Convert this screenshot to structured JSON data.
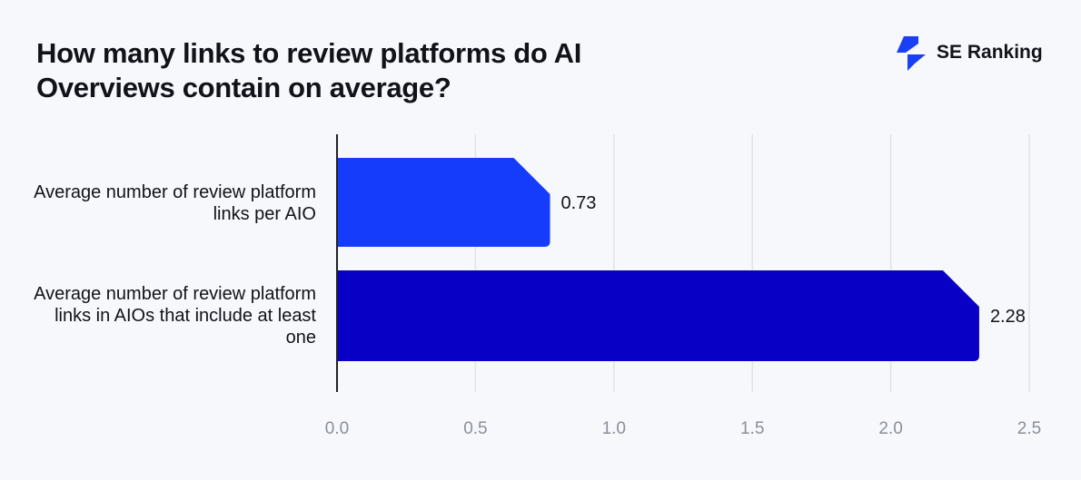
{
  "title": "How many links to review platforms do AI Overviews contain on average?",
  "logo": {
    "text": "SE Ranking",
    "color": "#1a40f5"
  },
  "chart_data": {
    "type": "bar",
    "orientation": "horizontal",
    "title": "How many links to review platforms do AI Overviews contain on average?",
    "categories": [
      "Average number of review platform links per AIO",
      "Average number of review platform links in AIOs that include at least one"
    ],
    "values": [
      0.73,
      2.28
    ],
    "data_labels": [
      "0.73",
      "2.28"
    ],
    "colors": [
      "#163cfb",
      "#0800c4"
    ],
    "xlim": [
      0,
      2.5
    ],
    "x_ticks": [
      "0.0",
      "0.5",
      "1.0",
      "1.5",
      "2.0",
      "2.5"
    ],
    "grid": true,
    "xlabel": "",
    "ylabel": ""
  }
}
